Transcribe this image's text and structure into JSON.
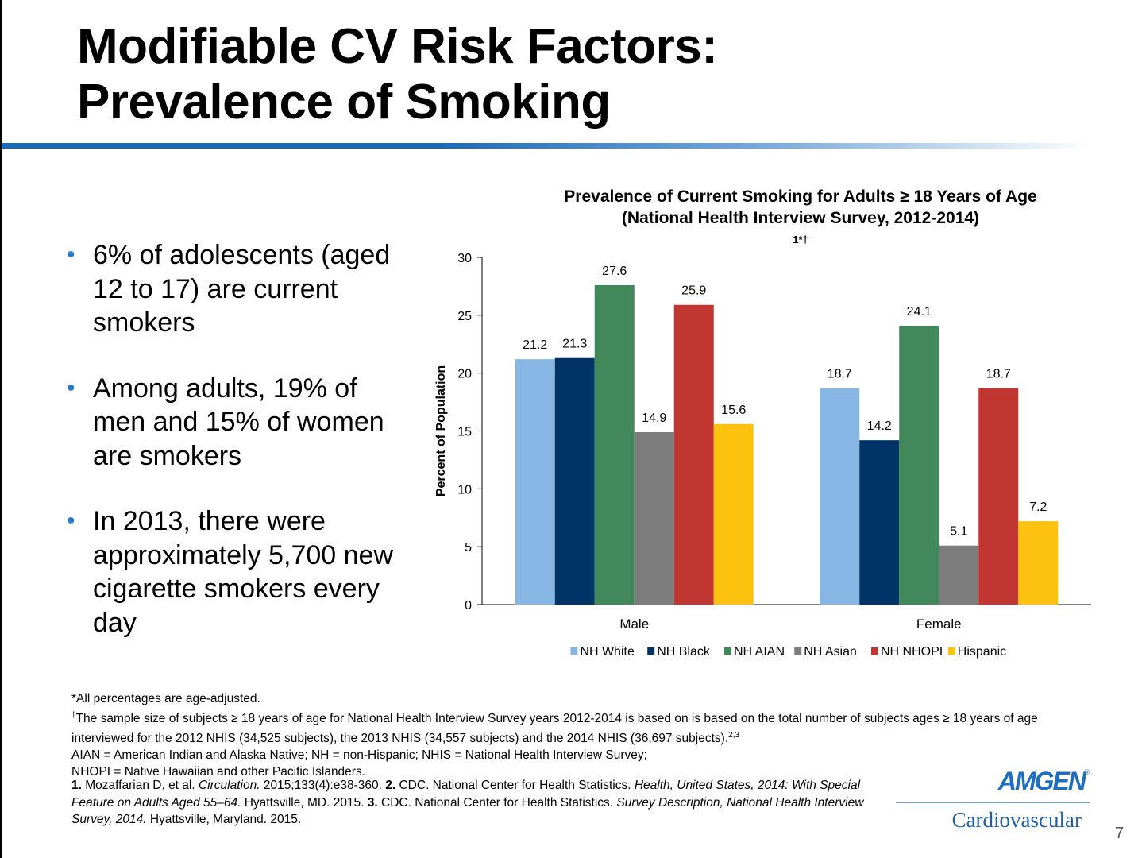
{
  "title": {
    "line1": "Modifiable CV Risk Factors:",
    "line2": "Prevalence of Smoking"
  },
  "bullets": [
    "6% of adolescents (aged 12 to 17) are current smokers",
    "Among adults, 19% of men and 15% of women are smokers",
    "In 2013, there were approximately 5,700 new cigarette smokers every day"
  ],
  "colors": {
    "title_bar": "#1c6ab6",
    "bullet": "#2a7cc7",
    "brand": "#1f6fc0"
  },
  "chart_data": {
    "type": "bar",
    "title_line1": "Prevalence of Current Smoking for Adults ≥ 18 Years of Age",
    "title_line2": "(National Health Interview Survey, 2012-2014)",
    "title_marks": "1*†",
    "xlabel": "",
    "ylabel": "Percent of Population",
    "ylim": [
      0,
      30
    ],
    "yticks": [
      "0",
      "5",
      "10",
      "15",
      "20",
      "25",
      "30"
    ],
    "categories": [
      "Male",
      "Female"
    ],
    "legend_position": "bottom",
    "grid": false,
    "series": [
      {
        "name": "NH White",
        "color": "#86b7e4",
        "values": [
          21.2,
          18.7
        ],
        "labels": [
          "21.2",
          "18.7"
        ]
      },
      {
        "name": "NH Black",
        "color": "#003466",
        "values": [
          21.3,
          14.2
        ],
        "labels": [
          "21.3",
          "14.2"
        ]
      },
      {
        "name": "NH AIAN",
        "color": "#41885a",
        "values": [
          27.6,
          24.1
        ],
        "labels": [
          "27.6",
          "24.1"
        ]
      },
      {
        "name": "NH Asian",
        "color": "#7d7d7d",
        "values": [
          14.9,
          5.1
        ],
        "labels": [
          "14.9",
          "5.1"
        ]
      },
      {
        "name": "NH NHOPI",
        "color": "#c13631",
        "values": [
          25.9,
          18.7
        ],
        "labels": [
          "25.9",
          "18.7"
        ]
      },
      {
        "name": "Hispanic",
        "color": "#fdc20e",
        "values": [
          15.6,
          7.2
        ],
        "labels": [
          "15.6",
          "7.2"
        ]
      }
    ]
  },
  "footnotes": {
    "line1": "*All percentages are age-adjusted.",
    "dagger": "†",
    "line2": "The sample size of subjects ≥ 18 years of age for National Health Interview Survey years 2012-2014 is based on is based on the total number of subjects ages ≥ 18 years of age interviewed for the 2012 NHIS (34,525 subjects), the 2013 NHIS (34,557 subjects) and the 2014 NHIS (36,697 subjects).",
    "line2_refs": "2,3",
    "line3": "AIAN = American Indian and Alaska Native; NH = non-Hispanic; NHIS = National Health Interview Survey;",
    "line4": "NHOPI = Native Hawaiian and other Pacific Islanders."
  },
  "references": {
    "r1_num": "1.",
    "r1_text": "Mozaffarian D, et al.",
    "r1_journal": "Circulation.",
    "r1_detail": "2015;133(4):e38-360.",
    "r2_num": "2.",
    "r2_text": "CDC. National Center for Health Statistics.",
    "r2_title": "Health, United States, 2014: With Special Feature on Adults Aged 55–64.",
    "r2_detail": "Hyattsville, MD. 2015.",
    "r3_num": "3.",
    "r3_text": "CDC. National Center for Health Statistics.",
    "r3_title": "Survey Description, National Health Interview Survey, 2014.",
    "r3_detail": "Hyattsville, Maryland. 2015."
  },
  "logo": {
    "brand": "AMGEN",
    "registered": "®",
    "division": "Cardiovascular"
  },
  "page_number": "7"
}
